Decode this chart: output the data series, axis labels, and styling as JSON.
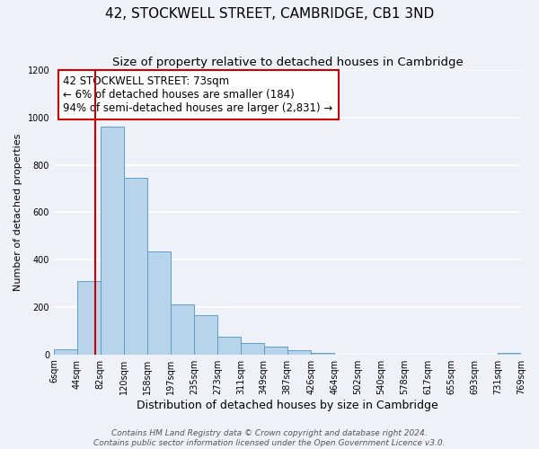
{
  "title": "42, STOCKWELL STREET, CAMBRIDGE, CB1 3ND",
  "subtitle": "Size of property relative to detached houses in Cambridge",
  "xlabel": "Distribution of detached houses by size in Cambridge",
  "ylabel": "Number of detached properties",
  "bin_edges": [
    6,
    44,
    82,
    120,
    158,
    197,
    235,
    273,
    311,
    349,
    387,
    426,
    464,
    502,
    540,
    578,
    617,
    655,
    693,
    731,
    769
  ],
  "bar_heights": [
    20,
    310,
    960,
    745,
    435,
    210,
    165,
    75,
    48,
    33,
    18,
    8,
    0,
    0,
    0,
    0,
    0,
    0,
    0,
    8
  ],
  "tick_labels": [
    "6sqm",
    "44sqm",
    "82sqm",
    "120sqm",
    "158sqm",
    "197sqm",
    "235sqm",
    "273sqm",
    "311sqm",
    "349sqm",
    "387sqm",
    "426sqm",
    "464sqm",
    "502sqm",
    "540sqm",
    "578sqm",
    "617sqm",
    "655sqm",
    "693sqm",
    "731sqm",
    "769sqm"
  ],
  "bar_color": "#b8d4ea",
  "bar_edge_color": "#5b9ec9",
  "vline_x": 73,
  "vline_color": "#cc0000",
  "annotation_line1": "42 STOCKWELL STREET: 73sqm",
  "annotation_line2": "← 6% of detached houses are smaller (184)",
  "annotation_line3": "94% of semi-detached houses are larger (2,831) →",
  "annotation_box_edge_color": "#cc0000",
  "ylim": [
    0,
    1200
  ],
  "yticks": [
    0,
    200,
    400,
    600,
    800,
    1000,
    1200
  ],
  "footer_line1": "Contains HM Land Registry data © Crown copyright and database right 2024.",
  "footer_line2": "Contains public sector information licensed under the Open Government Licence v3.0.",
  "background_color": "#eef2f8",
  "plot_bg_color": "#eef2f8",
  "grid_color": "#ffffff",
  "title_fontsize": 11,
  "subtitle_fontsize": 9.5,
  "xlabel_fontsize": 9,
  "ylabel_fontsize": 8,
  "tick_fontsize": 7,
  "annotation_fontsize": 8.5,
  "footer_fontsize": 6.5
}
